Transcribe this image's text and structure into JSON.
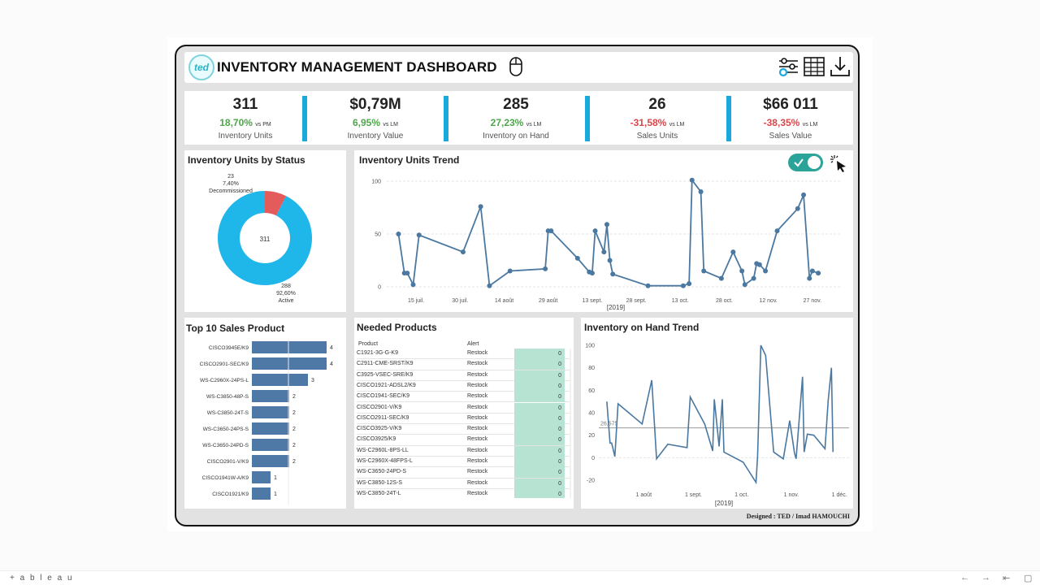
{
  "header": {
    "logo_text": "ted",
    "title": "INVENTORY MANAGEMENT DASHBOARD"
  },
  "kpis": [
    {
      "value": "311",
      "delta": "18,70%",
      "delta_sign": "positive",
      "vs": "vs PM",
      "label": "Inventory Units"
    },
    {
      "value": "$0,79M",
      "delta": "6,95%",
      "delta_sign": "positive",
      "vs": "vs LM",
      "label": "Inventory Value"
    },
    {
      "value": "285",
      "delta": "27,23%",
      "delta_sign": "positive",
      "vs": "vs LM",
      "label": "Inventory on Hand"
    },
    {
      "value": "26",
      "delta": "-31,58%",
      "delta_sign": "negative",
      "vs": "vs LM",
      "label": "Sales Units"
    },
    {
      "value": "$66 011",
      "delta": "-38,35%",
      "delta_sign": "negative",
      "vs": "vs LM",
      "label": "Sales Value"
    }
  ],
  "colors": {
    "accent": "#1aa9dc",
    "donut_active": "#1fb6ea",
    "donut_decommissioned": "#e35b5b",
    "line": "#4a78a0",
    "bar": "#4e79a7",
    "positive": "#4ea64a",
    "negative": "#d9464b",
    "alert_cell": "#b7e3d3"
  },
  "status_panel": {
    "title": "Inventory Units by Status",
    "center_label": "311",
    "decommissioned": {
      "count": "23",
      "pct": "7,40%",
      "label": "Decommissioned"
    },
    "active": {
      "count": "288",
      "pct": "92,60%",
      "label": "Active"
    }
  },
  "trend_panel": {
    "title": "Inventory Units Trend",
    "toggle_on": true,
    "x_axis_caption": "[2019]"
  },
  "top10_panel": {
    "title": "Top 10 Sales Product"
  },
  "needed_panel": {
    "title": "Needed Products",
    "col_product": "Product",
    "col_alert": "Alert",
    "rows": [
      {
        "product": "C1921-3G-G-K9",
        "alert": "Restock",
        "qty": "0"
      },
      {
        "product": "C2911-CME-SRST/K9",
        "alert": "Restock",
        "qty": "0"
      },
      {
        "product": "C3925-VSEC-SRE/K9",
        "alert": "Restock",
        "qty": "0"
      },
      {
        "product": "CISCO1921-ADSL2/K9",
        "alert": "Restock",
        "qty": "0"
      },
      {
        "product": "CISCO1941-SEC/K9",
        "alert": "Restock",
        "qty": "0"
      },
      {
        "product": "CISCO2901-V/K9",
        "alert": "Restock",
        "qty": "0"
      },
      {
        "product": "CISCO2911-SEC/K9",
        "alert": "Restock",
        "qty": "0"
      },
      {
        "product": "CISCO3925-V/K9",
        "alert": "Restock",
        "qty": "0"
      },
      {
        "product": "CISCO3925/K9",
        "alert": "Restock",
        "qty": "0"
      },
      {
        "product": "WS-C2960L-8PS-LL",
        "alert": "Restock",
        "qty": "0"
      },
      {
        "product": "WS-C2960X-48FPS-L",
        "alert": "Restock",
        "qty": "0"
      },
      {
        "product": "WS-C3650-24PD-S",
        "alert": "Restock",
        "qty": "0"
      },
      {
        "product": "WS-C3850-12S-S",
        "alert": "Restock",
        "qty": "0"
      },
      {
        "product": "WS-C3850-24T-L",
        "alert": "Restock",
        "qty": "0"
      }
    ]
  },
  "onhand_panel": {
    "title": "Inventory on Hand Trend",
    "x_axis_caption": "[2019]"
  },
  "footer": {
    "designed_by": "Designed : TED / Imad HAMOUCHI",
    "tableau_brand": "+ a b l e a u"
  },
  "chart_data": [
    {
      "type": "pie",
      "title": "Inventory Units by Status",
      "categories": [
        "Decommissioned",
        "Active"
      ],
      "values": [
        23,
        288
      ]
    },
    {
      "type": "line",
      "title": "Inventory Units Trend",
      "xlabel": "[2019]",
      "ylim": [
        0,
        100
      ],
      "y_ticks": [
        0,
        50,
        100
      ],
      "x_ticks": [
        "15 juil.",
        "30 juil.",
        "14 août",
        "29 août",
        "13 sept.",
        "28 sept.",
        "13 oct.",
        "28 oct.",
        "12 nov.",
        "27 nov."
      ],
      "x_range": [
        "2019-07-05",
        "2019-12-07"
      ],
      "grid": "horizontal",
      "series": [
        {
          "x": [
            "2019-07-09",
            "2019-07-11",
            "2019-07-12",
            "2019-07-14",
            "2019-07-16",
            "2019-07-31",
            "2019-08-06",
            "2019-08-09",
            "2019-08-16",
            "2019-08-28",
            "2019-08-29",
            "2019-08-30",
            "2019-09-08",
            "2019-09-12",
            "2019-09-13",
            "2019-09-14",
            "2019-09-17",
            "2019-09-18",
            "2019-09-19",
            "2019-09-20",
            "2019-10-02",
            "2019-10-14",
            "2019-10-16",
            "2019-10-17",
            "2019-10-20",
            "2019-10-21",
            "2019-10-27",
            "2019-10-31",
            "2019-11-03",
            "2019-11-04",
            "2019-11-07",
            "2019-11-08",
            "2019-11-09",
            "2019-11-11",
            "2019-11-15",
            "2019-11-22",
            "2019-11-24",
            "2019-11-26",
            "2019-11-27",
            "2019-11-29"
          ],
          "values": [
            50,
            13,
            13,
            2,
            49,
            33,
            76,
            1,
            15,
            17,
            53,
            53,
            27,
            14,
            13,
            53,
            33,
            59,
            25,
            12,
            1,
            1,
            3,
            101,
            90,
            15,
            8,
            33,
            15,
            2,
            8,
            22,
            21,
            15,
            53,
            74,
            87,
            8,
            15,
            13
          ]
        }
      ]
    },
    {
      "type": "bar",
      "title": "Top 10 Sales Product",
      "orientation": "horizontal",
      "categories": [
        "CISCO3945E/K9",
        "CISCO2901-SEC/K9",
        "WS-C2960X-24PS-L",
        "WS-C3850-48P-S",
        "WS-C3850-24T-S",
        "WS-C3650-24PS-S",
        "WS-C3650-24PD-S",
        "CISCO2901-V/K9",
        "CISCO1941W-A/K9",
        "CISCO1921/K9"
      ],
      "values": [
        4,
        4,
        3,
        2,
        2,
        2,
        2,
        2,
        1,
        1
      ]
    },
    {
      "type": "line",
      "title": "Inventory on Hand Trend",
      "xlabel": "[2019]",
      "ylim": [
        -20,
        100
      ],
      "y_ticks": [
        -20,
        0,
        20,
        40,
        60,
        80,
        100
      ],
      "x_ticks": [
        "1 août",
        "1 sept.",
        "1 oct.",
        "1 nov.",
        "1 déc."
      ],
      "x_range": [
        "2019-07-04",
        "2019-12-07"
      ],
      "reference_line": {
        "value": 26.575,
        "label": "26,575"
      },
      "series": [
        {
          "x": [
            "2019-07-09",
            "2019-07-11",
            "2019-07-12",
            "2019-07-14",
            "2019-07-16",
            "2019-07-31",
            "2019-08-06",
            "2019-08-09",
            "2019-08-16",
            "2019-08-28",
            "2019-08-30",
            "2019-09-08",
            "2019-09-13",
            "2019-09-14",
            "2019-09-17",
            "2019-09-19",
            "2019-09-20",
            "2019-10-02",
            "2019-10-10",
            "2019-10-11",
            "2019-10-13",
            "2019-10-16",
            "2019-10-21",
            "2019-10-27",
            "2019-10-31",
            "2019-11-03",
            "2019-11-04",
            "2019-11-08",
            "2019-11-09",
            "2019-11-11",
            "2019-11-15",
            "2019-11-22",
            "2019-11-24",
            "2019-11-26",
            "2019-11-27"
          ],
          "values": [
            50,
            13,
            13,
            1,
            48,
            30,
            69,
            -1,
            12,
            9,
            54,
            30,
            6,
            52,
            10,
            52,
            5,
            -4,
            -22,
            2,
            100,
            91,
            5,
            -1,
            33,
            4,
            -1,
            72,
            5,
            21,
            20,
            8,
            51,
            80,
            5
          ]
        }
      ]
    }
  ]
}
